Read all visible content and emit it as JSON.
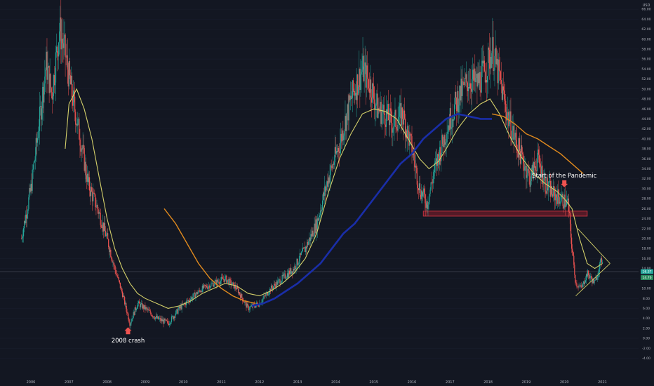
{
  "chart_data": {
    "type": "candlestick",
    "currency_label": "USD",
    "y_ticks": [
      "-4.00",
      "-2.00",
      "0.00",
      "2.00",
      "4.00",
      "6.00",
      "8.00",
      "10.00",
      "12.00",
      "14.00",
      "16.00",
      "18.00",
      "20.00",
      "22.00",
      "24.00",
      "26.00",
      "28.00",
      "30.00",
      "32.00",
      "34.00",
      "36.00",
      "38.00",
      "40.00",
      "42.00",
      "44.00",
      "46.00",
      "48.00",
      "50.00",
      "52.00",
      "54.00",
      "56.00",
      "58.00",
      "60.00",
      "62.00",
      "64.00",
      "66.00",
      "68.00"
    ],
    "x_ticks": [
      "2006",
      "2007",
      "2008",
      "2009",
      "2010",
      "2011",
      "2012",
      "2013",
      "2014",
      "2015",
      "2016",
      "2017",
      "2018",
      "2019",
      "2020",
      "2021"
    ],
    "ylim": [
      -5,
      70
    ],
    "price_badges": [
      "16.37",
      "14.76"
    ],
    "price_anchors": [
      [
        2005.75,
        20
      ],
      [
        2006.0,
        30
      ],
      [
        2006.2,
        42
      ],
      [
        2006.4,
        55
      ],
      [
        2006.55,
        49
      ],
      [
        2006.75,
        62
      ],
      [
        2006.9,
        57
      ],
      [
        2007.1,
        48
      ],
      [
        2007.3,
        40
      ],
      [
        2007.5,
        31
      ],
      [
        2007.75,
        26
      ],
      [
        2008.0,
        20
      ],
      [
        2008.2,
        14
      ],
      [
        2008.4,
        9
      ],
      [
        2008.6,
        3
      ],
      [
        2008.8,
        7
      ],
      [
        2009.0,
        6
      ],
      [
        2009.3,
        4
      ],
      [
        2009.6,
        3
      ],
      [
        2009.9,
        6
      ],
      [
        2010.2,
        8
      ],
      [
        2010.5,
        10
      ],
      [
        2010.8,
        11
      ],
      [
        2011.1,
        12
      ],
      [
        2011.4,
        10
      ],
      [
        2011.7,
        6
      ],
      [
        2012.0,
        7
      ],
      [
        2012.3,
        10
      ],
      [
        2012.6,
        12
      ],
      [
        2012.9,
        14
      ],
      [
        2013.2,
        18
      ],
      [
        2013.5,
        23
      ],
      [
        2013.8,
        32
      ],
      [
        2014.1,
        39
      ],
      [
        2014.4,
        48
      ],
      [
        2014.7,
        54
      ],
      [
        2014.9,
        51
      ],
      [
        2015.1,
        46
      ],
      [
        2015.3,
        45
      ],
      [
        2015.5,
        43
      ],
      [
        2015.75,
        45
      ],
      [
        2016.0,
        38
      ],
      [
        2016.2,
        30
      ],
      [
        2016.4,
        27
      ],
      [
        2016.6,
        34
      ],
      [
        2016.8,
        39
      ],
      [
        2017.0,
        44
      ],
      [
        2017.2,
        48
      ],
      [
        2017.5,
        52
      ],
      [
        2017.7,
        51
      ],
      [
        2017.95,
        54
      ],
      [
        2018.1,
        58
      ],
      [
        2018.3,
        52
      ],
      [
        2018.5,
        45
      ],
      [
        2018.7,
        40
      ],
      [
        2018.9,
        36
      ],
      [
        2019.1,
        32
      ],
      [
        2019.3,
        36
      ],
      [
        2019.5,
        31
      ],
      [
        2019.7,
        29
      ],
      [
        2019.9,
        28
      ],
      [
        2020.1,
        27
      ],
      [
        2020.2,
        18
      ],
      [
        2020.3,
        11
      ],
      [
        2020.45,
        10
      ],
      [
        2020.6,
        13
      ],
      [
        2020.8,
        11
      ],
      [
        2020.9,
        14
      ],
      [
        2021.0,
        16
      ]
    ],
    "ma_short": [
      [
        2006.9,
        38
      ],
      [
        2007.0,
        47
      ],
      [
        2007.2,
        50
      ],
      [
        2007.4,
        46
      ],
      [
        2007.6,
        40
      ],
      [
        2007.8,
        32
      ],
      [
        2008.0,
        24
      ],
      [
        2008.2,
        18
      ],
      [
        2008.4,
        14
      ],
      [
        2008.6,
        11
      ],
      [
        2008.8,
        9
      ],
      [
        2009.0,
        8
      ],
      [
        2009.3,
        7
      ],
      [
        2009.6,
        6
      ],
      [
        2009.9,
        6.5
      ],
      [
        2010.2,
        7.5
      ],
      [
        2010.5,
        9
      ],
      [
        2010.8,
        10
      ],
      [
        2011.1,
        11
      ],
      [
        2011.4,
        10.5
      ],
      [
        2011.7,
        9
      ],
      [
        2012.0,
        8.5
      ],
      [
        2012.3,
        9.5
      ],
      [
        2012.6,
        11
      ],
      [
        2012.9,
        13
      ],
      [
        2013.2,
        16
      ],
      [
        2013.5,
        21
      ],
      [
        2013.8,
        29
      ],
      [
        2014.1,
        36
      ],
      [
        2014.4,
        41
      ],
      [
        2014.7,
        45
      ],
      [
        2015.0,
        46
      ],
      [
        2015.3,
        45.5
      ],
      [
        2015.6,
        44
      ],
      [
        2015.9,
        40
      ],
      [
        2016.2,
        36
      ],
      [
        2016.45,
        34
      ],
      [
        2016.7,
        35.5
      ],
      [
        2016.9,
        38
      ],
      [
        2017.2,
        42
      ],
      [
        2017.5,
        45
      ],
      [
        2017.8,
        47
      ],
      [
        2018.05,
        48
      ],
      [
        2018.3,
        45
      ],
      [
        2018.6,
        40
      ],
      [
        2018.9,
        36
      ],
      [
        2019.2,
        33
      ],
      [
        2019.5,
        31
      ],
      [
        2019.8,
        29.5
      ],
      [
        2020.0,
        28
      ],
      [
        2020.2,
        26
      ],
      [
        2020.4,
        20
      ],
      [
        2020.6,
        15
      ],
      [
        2020.8,
        14
      ],
      [
        2021.0,
        15
      ]
    ],
    "ma_long_orange": [
      [
        2009.5,
        26
      ],
      [
        2009.8,
        23
      ],
      [
        2010.1,
        19
      ],
      [
        2010.4,
        15
      ],
      [
        2010.7,
        12
      ],
      [
        2011.0,
        10
      ],
      [
        2011.3,
        8.5
      ],
      [
        2011.6,
        7.5
      ],
      [
        2011.9,
        7
      ]
    ],
    "ma_long_orange_2": [
      [
        2018.1,
        45
      ],
      [
        2018.4,
        44.5
      ],
      [
        2018.7,
        43
      ],
      [
        2019.0,
        41
      ],
      [
        2019.3,
        40
      ],
      [
        2019.6,
        38.5
      ],
      [
        2019.9,
        37
      ],
      [
        2020.2,
        35
      ],
      [
        2020.5,
        33
      ]
    ],
    "ma_blue": [
      [
        2011.8,
        6.5
      ],
      [
        2012.1,
        7
      ],
      [
        2012.4,
        8
      ],
      [
        2012.7,
        9.5
      ],
      [
        2013.0,
        11
      ],
      [
        2013.3,
        13
      ],
      [
        2013.6,
        15
      ],
      [
        2013.9,
        18
      ],
      [
        2014.2,
        21
      ],
      [
        2014.5,
        23
      ],
      [
        2014.8,
        26
      ],
      [
        2015.1,
        29
      ],
      [
        2015.4,
        32
      ],
      [
        2015.7,
        35
      ],
      [
        2016.0,
        37
      ],
      [
        2016.3,
        40
      ],
      [
        2016.6,
        42
      ],
      [
        2016.9,
        44
      ],
      [
        2017.2,
        45
      ],
      [
        2017.5,
        44.5
      ],
      [
        2017.8,
        44
      ],
      [
        2018.1,
        44
      ]
    ],
    "support_zone": {
      "x_start": 2016.3,
      "x_end": 2020.6,
      "y_low": 24.5,
      "y_high": 25.5
    },
    "triangle": {
      "apex": [
        2021.2,
        15
      ],
      "upper_start": [
        2020.35,
        22
      ],
      "lower_start": [
        2020.3,
        8.5
      ]
    },
    "annotations": [
      {
        "label": "Start of the Pandemic",
        "x": 2020.0,
        "y": 30,
        "arrow": "down"
      },
      {
        "label": "2008 crash",
        "x": 2008.55,
        "y": 2.5,
        "arrow": "up"
      }
    ]
  }
}
